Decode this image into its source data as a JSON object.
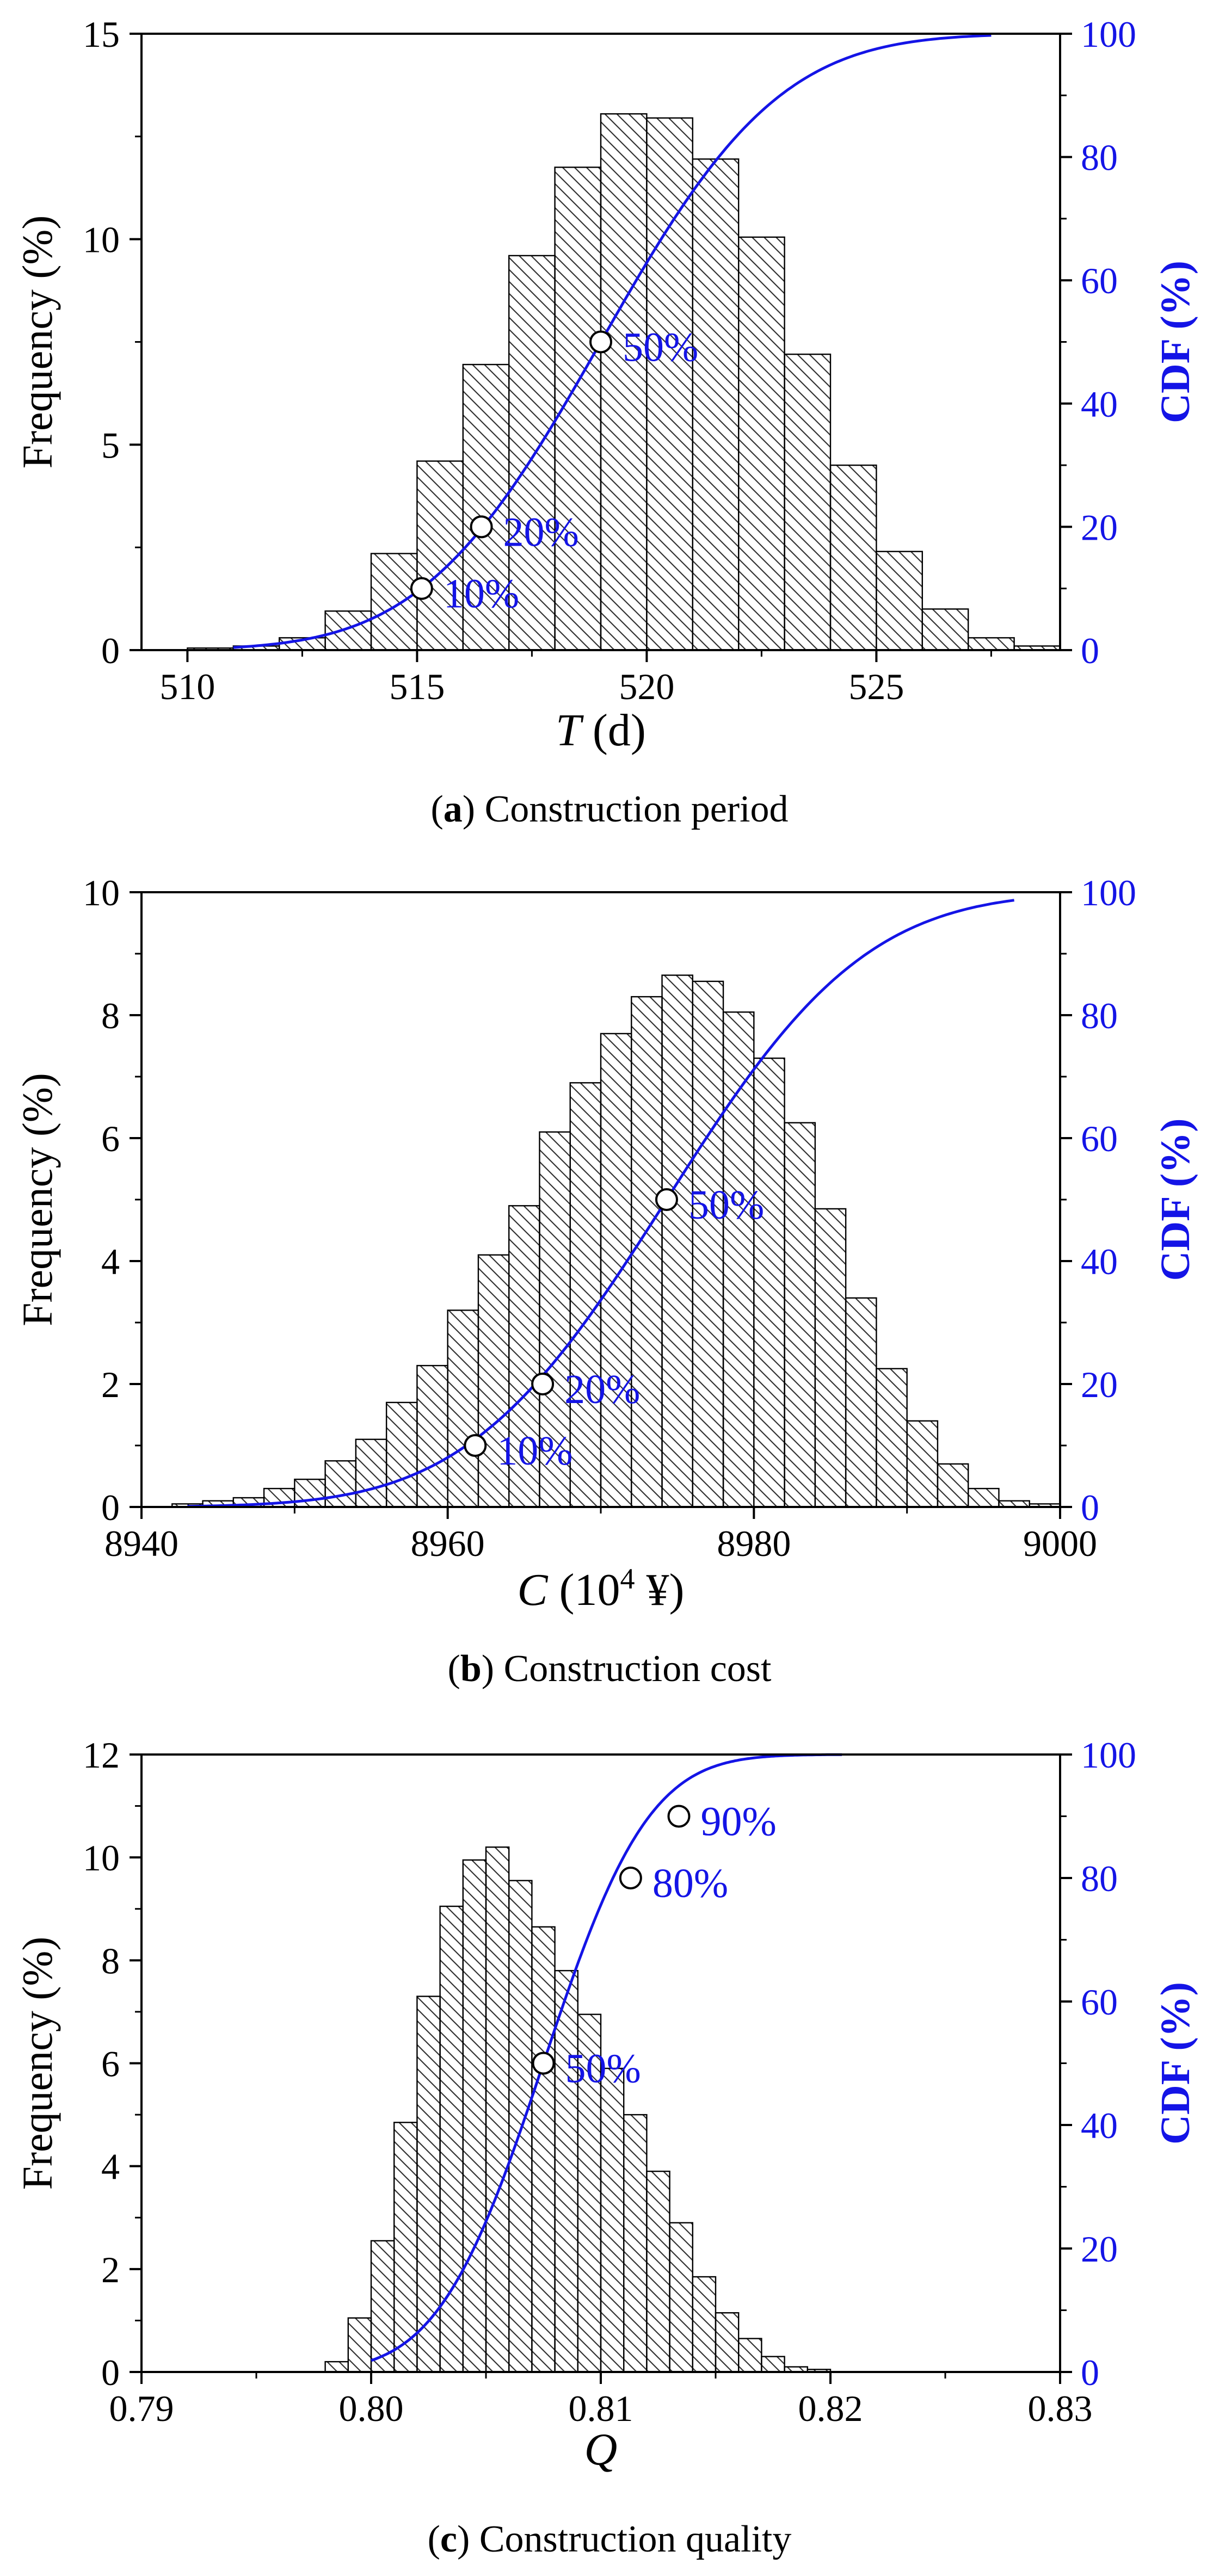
{
  "chart_data": [
    {
      "type": "bar",
      "overlay": "line",
      "caption_letter": "a",
      "caption_text": " Construction period",
      "xlabel_var": "T",
      "xlabel_unit": " (d)",
      "ylabel": "Frequency (%)",
      "y2label": "CDF (%)",
      "xlim": [
        509,
        529
      ],
      "ylim": [
        0,
        15
      ],
      "y2lim": [
        0,
        100
      ],
      "xticks": [
        "510",
        "515",
        "520",
        "525"
      ],
      "xtick_values": [
        510,
        515,
        520,
        525
      ],
      "yticks": [
        "0",
        "5",
        "10",
        "15"
      ],
      "ytick_values": [
        0,
        5,
        10,
        15
      ],
      "y2ticks": [
        "0",
        "20",
        "40",
        "60",
        "80",
        "100"
      ],
      "y2tick_values": [
        0,
        20,
        40,
        60,
        80,
        100
      ],
      "bin_start": 510,
      "bin_width": 1,
      "values": [
        0.05,
        0.1,
        0.3,
        0.95,
        2.35,
        4.6,
        6.95,
        9.6,
        11.75,
        13.05,
        12.95,
        11.95,
        10.05,
        7.2,
        4.5,
        2.4,
        1.0,
        0.3,
        0.1
      ],
      "cdf": {
        "name": "CDF",
        "mu": 519.0,
        "sigma": 3.05,
        "x_range": [
          511,
          527.5
        ]
      },
      "markers": [
        {
          "x": 515.1,
          "cdf": 10,
          "label": "10%"
        },
        {
          "x": 516.4,
          "cdf": 20,
          "label": "20%"
        },
        {
          "x": 519.0,
          "cdf": 50,
          "label": "50%"
        }
      ],
      "colors": {
        "cdf": "#1414e6",
        "bar_edge": "#000000",
        "hatch": "#333333"
      }
    },
    {
      "type": "bar",
      "overlay": "line",
      "caption_letter": "b",
      "caption_text": " Construction cost",
      "xlabel_var": "C",
      "xlabel_unit": " (10",
      "xlabel_sup": "4",
      "xlabel_tail": " ¥)",
      "ylabel": "Frequency (%)",
      "y2label": "CDF (%)",
      "xlim": [
        8940,
        9000
      ],
      "ylim": [
        0,
        10
      ],
      "y2lim": [
        0,
        100
      ],
      "xticks": [
        "8940",
        "8960",
        "8980",
        "9000"
      ],
      "xtick_values": [
        8940,
        8960,
        8980,
        9000
      ],
      "yticks": [
        "0",
        "2",
        "4",
        "6",
        "8",
        "10"
      ],
      "ytick_values": [
        0,
        2,
        4,
        6,
        8,
        10
      ],
      "y2ticks": [
        "0",
        "20",
        "40",
        "60",
        "80",
        "100"
      ],
      "y2tick_values": [
        0,
        20,
        40,
        60,
        80,
        100
      ],
      "bin_start": 8942,
      "bin_width": 2,
      "values": [
        0.05,
        0.1,
        0.15,
        0.3,
        0.45,
        0.75,
        1.1,
        1.7,
        2.3,
        3.2,
        4.1,
        4.9,
        6.1,
        6.9,
        7.7,
        8.3,
        8.65,
        8.55,
        8.05,
        7.3,
        6.25,
        4.85,
        3.4,
        2.25,
        1.4,
        0.7,
        0.3,
        0.1,
        0.05
      ],
      "cdf": {
        "name": "CDF",
        "mu": 8974.3,
        "sigma": 10.2,
        "x_range": [
          8943,
          8997
        ]
      },
      "markers": [
        {
          "x": 8961.8,
          "cdf": 10,
          "label": "10%"
        },
        {
          "x": 8966.2,
          "cdf": 20,
          "label": "20%"
        },
        {
          "x": 8974.3,
          "cdf": 50,
          "label": "50%"
        }
      ],
      "colors": {
        "cdf": "#1414e6",
        "bar_edge": "#000000",
        "hatch": "#333333"
      }
    },
    {
      "type": "bar",
      "overlay": "line",
      "caption_letter": "c",
      "caption_text": " Construction quality",
      "xlabel_var": "Q",
      "xlabel_unit": "",
      "ylabel": "Frequency (%)",
      "y2label": "CDF (%)",
      "xlim": [
        0.79,
        0.83
      ],
      "ylim": [
        0,
        12
      ],
      "y2lim": [
        0,
        100
      ],
      "xticks": [
        "0.79",
        "0.80",
        "0.81",
        "0.82",
        "0.83"
      ],
      "xtick_values": [
        0.79,
        0.8,
        0.81,
        0.82,
        0.83
      ],
      "yticks": [
        "0",
        "2",
        "4",
        "6",
        "8",
        "10",
        "12"
      ],
      "ytick_values": [
        0,
        2,
        4,
        6,
        8,
        10,
        12
      ],
      "y2ticks": [
        "0",
        "20",
        "40",
        "60",
        "80",
        "100"
      ],
      "y2tick_values": [
        0,
        20,
        40,
        60,
        80,
        100
      ],
      "bin_start": 0.798,
      "bin_width": 0.001,
      "values": [
        0.2,
        1.05,
        2.55,
        4.85,
        7.3,
        9.05,
        9.95,
        10.2,
        9.55,
        8.65,
        7.8,
        6.95,
        5.9,
        5.0,
        3.9,
        2.9,
        1.85,
        1.15,
        0.65,
        0.3,
        0.1,
        0.05
      ],
      "cdf": {
        "name": "CDF",
        "mu": 0.8075,
        "sigma": 0.0036,
        "x_range": [
          0.8,
          0.8205
        ]
      },
      "markers": [
        {
          "x": 0.8075,
          "cdf": 50,
          "label": "50%"
        },
        {
          "x": 0.8113,
          "cdf": 80,
          "label": "80%"
        },
        {
          "x": 0.8134,
          "cdf": 90,
          "label": "90%"
        }
      ],
      "colors": {
        "cdf": "#1414e6",
        "bar_edge": "#000000",
        "hatch": "#333333"
      }
    }
  ]
}
